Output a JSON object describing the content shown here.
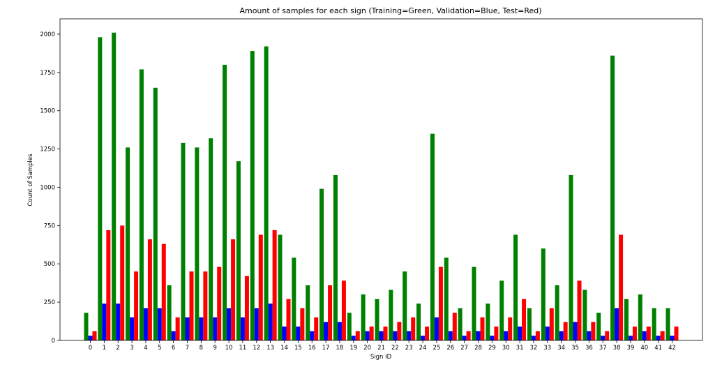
{
  "chart_data": {
    "type": "bar",
    "title": "Amount of samples for each sign (Training=Green, Validation=Blue, Test=Red)",
    "xlabel": "Sign ID",
    "ylabel": "Count of Samples",
    "ylim": [
      0,
      2100
    ],
    "yticks": [
      0,
      250,
      500,
      750,
      1000,
      1250,
      1500,
      1750,
      2000
    ],
    "grid": false,
    "categories": [
      "0",
      "1",
      "2",
      "3",
      "4",
      "5",
      "6",
      "7",
      "8",
      "9",
      "10",
      "11",
      "12",
      "13",
      "14",
      "15",
      "16",
      "17",
      "18",
      "19",
      "20",
      "21",
      "22",
      "23",
      "24",
      "25",
      "26",
      "27",
      "28",
      "29",
      "30",
      "31",
      "32",
      "33",
      "34",
      "35",
      "36",
      "37",
      "38",
      "39",
      "40",
      "41",
      "42"
    ],
    "series": [
      {
        "color": "#008000",
        "values": [
          180,
          1980,
          2010,
          1260,
          1770,
          1650,
          360,
          1290,
          1260,
          1320,
          1800,
          1170,
          1890,
          1920,
          690,
          540,
          360,
          990,
          1080,
          180,
          300,
          270,
          330,
          450,
          240,
          1350,
          540,
          210,
          480,
          240,
          390,
          690,
          210,
          600,
          360,
          1080,
          330,
          180,
          1860,
          270,
          300,
          210,
          210
        ]
      },
      {
        "color": "#0000ff",
        "values": [
          30,
          240,
          240,
          150,
          210,
          210,
          60,
          150,
          150,
          150,
          210,
          150,
          210,
          240,
          90,
          90,
          60,
          120,
          120,
          30,
          60,
          60,
          60,
          60,
          30,
          150,
          60,
          30,
          60,
          30,
          60,
          90,
          30,
          90,
          60,
          120,
          60,
          30,
          210,
          30,
          60,
          30,
          30
        ]
      },
      {
        "color": "#ff0000",
        "values": [
          60,
          720,
          750,
          450,
          660,
          630,
          150,
          450,
          450,
          480,
          660,
          420,
          690,
          720,
          270,
          210,
          150,
          360,
          390,
          60,
          90,
          90,
          120,
          150,
          90,
          480,
          180,
          60,
          150,
          90,
          150,
          270,
          60,
          210,
          120,
          390,
          120,
          60,
          690,
          90,
          90,
          60,
          90
        ]
      }
    ]
  }
}
